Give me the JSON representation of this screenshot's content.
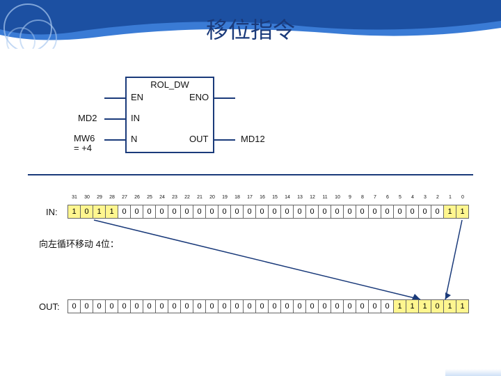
{
  "title": "移位指令",
  "header": {
    "wave_primary": "#3a7bd5",
    "wave_light": "#a8c8f0",
    "wave_dark": "#1a4b9c",
    "title_color": "#1a3a7a"
  },
  "function_block": {
    "name": "ROL_DW",
    "ports_left": [
      {
        "label": "EN",
        "external": "",
        "y": 30
      },
      {
        "label": "IN",
        "external": "MD2",
        "y": 60
      },
      {
        "label": "N",
        "external": "MW6\n= +4",
        "y": 90
      }
    ],
    "ports_right": [
      {
        "label": "ENO",
        "external": "",
        "y": 30
      },
      {
        "label": "OUT",
        "external": "MD12",
        "y": 90
      }
    ],
    "border_color": "#1a3a7a"
  },
  "bits": {
    "indices": [
      "31",
      "30",
      "29",
      "28",
      "27",
      "26",
      "25",
      "24",
      "23",
      "22",
      "21",
      "20",
      "19",
      "18",
      "17",
      "16",
      "15",
      "14",
      "13",
      "12",
      "11",
      "10",
      "9",
      "8",
      "7",
      "6",
      "5",
      "4",
      "3",
      "2",
      "1",
      "0"
    ],
    "in_label": "IN:",
    "in_values": [
      "1",
      "0",
      "1",
      "1",
      "0",
      "0",
      "0",
      "0",
      "0",
      "0",
      "0",
      "0",
      "0",
      "0",
      "0",
      "0",
      "0",
      "0",
      "0",
      "0",
      "0",
      "0",
      "0",
      "0",
      "0",
      "0",
      "0",
      "0",
      "0",
      "0",
      "1",
      "1"
    ],
    "in_highlight": [
      0,
      1,
      2,
      3,
      30,
      31
    ],
    "caption": "向左循环移动 4位：",
    "out_label": "OUT:",
    "out_values": [
      "0",
      "0",
      "0",
      "0",
      "0",
      "0",
      "0",
      "0",
      "0",
      "0",
      "0",
      "0",
      "0",
      "0",
      "0",
      "0",
      "0",
      "0",
      "0",
      "0",
      "0",
      "0",
      "0",
      "0",
      "0",
      "0",
      "1",
      "1",
      "1",
      "0",
      "1",
      "1"
    ],
    "out_highlight": [
      26,
      27,
      28,
      29,
      30,
      31
    ],
    "cell_bg": "#ffffff",
    "cell_hl": "#fff68f",
    "cell_border": "#666666"
  },
  "arrow_color": "#1a3a7a"
}
